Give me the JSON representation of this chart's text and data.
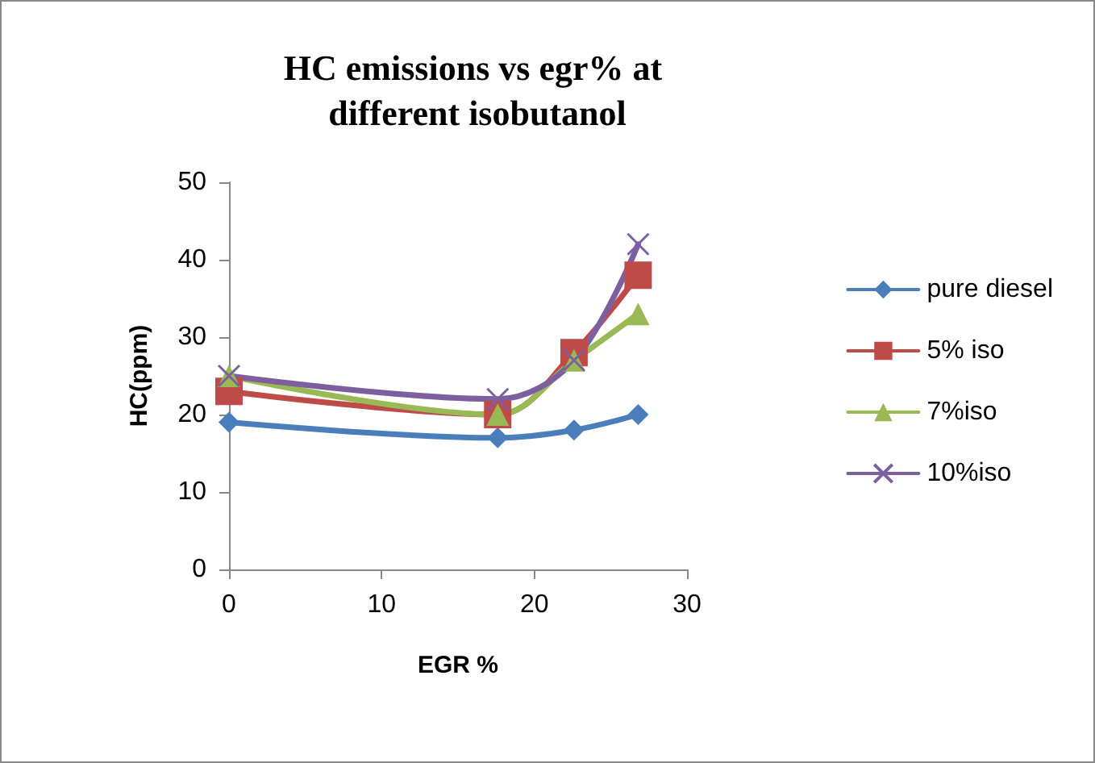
{
  "chart_data": {
    "type": "line",
    "title": "HC emissions vs egr% at different isobutanol",
    "xlabel": "EGR %",
    "ylabel": "HC(ppm)",
    "x": [
      0,
      17.6,
      22.6,
      26.8
    ],
    "series": [
      {
        "name": "pure diesel",
        "color": "#4a7ebb",
        "marker": "diamond",
        "values": [
          19,
          17,
          18,
          20
        ]
      },
      {
        "name": "5% iso",
        "color": "#be4b48",
        "marker": "square",
        "values": [
          23,
          20,
          28,
          38
        ]
      },
      {
        "name": "7%iso",
        "color": "#98b954",
        "marker": "triangle",
        "values": [
          25,
          20,
          27,
          33
        ]
      },
      {
        "name": "10%iso",
        "color": "#7d5fa0",
        "marker": "cross",
        "values": [
          25,
          22,
          27,
          42
        ]
      }
    ],
    "xlim": [
      0,
      30
    ],
    "xticks": [
      0,
      10,
      20,
      30
    ],
    "ylim": [
      0,
      50
    ],
    "yticks": [
      0,
      10,
      20,
      30,
      40,
      50
    ],
    "grid": false,
    "legend": "right"
  }
}
